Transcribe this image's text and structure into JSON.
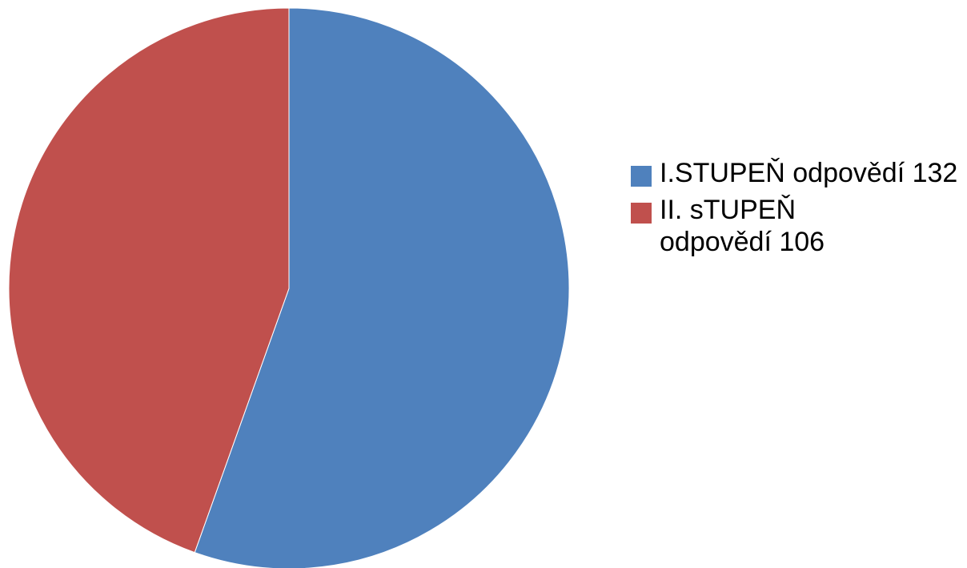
{
  "chart_data": {
    "type": "pie",
    "title": "",
    "legend_position": "right",
    "slices": [
      {
        "label": "I.STUPEŇ odpovědí 132",
        "value": 132,
        "color": "#4F81BD"
      },
      {
        "label": "II. sTUPEŇ odpovědí 106",
        "value": 106,
        "color": "#C0504D"
      }
    ]
  }
}
